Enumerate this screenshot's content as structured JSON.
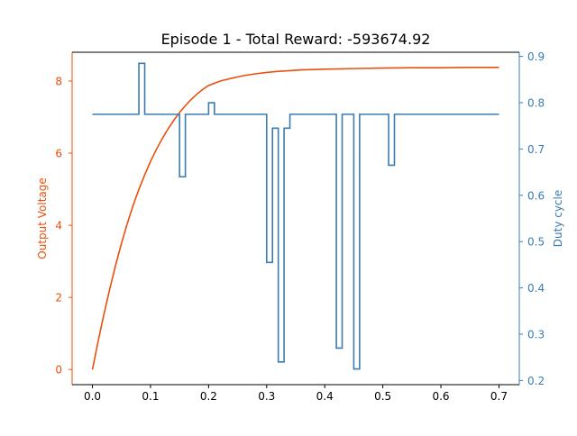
{
  "chart_data": {
    "type": "line",
    "title": "Episode 1 - Total Reward: -593674.92",
    "xlabel": "",
    "xlim": [
      -0.035,
      0.735
    ],
    "x_ticks": [
      "0.0",
      "0.1",
      "0.2",
      "0.3",
      "0.4",
      "0.5",
      "0.6",
      "0.7"
    ],
    "x_tick_values": [
      0.0,
      0.1,
      0.2,
      0.3,
      0.4,
      0.5,
      0.6,
      0.7
    ],
    "grid": false,
    "legend": "none",
    "left_axis": {
      "label": "Output Voltage",
      "color": "#e8500f",
      "ylim": [
        -0.42,
        8.8
      ],
      "ticks": [
        "0",
        "2",
        "4",
        "6",
        "8"
      ],
      "tick_values": [
        0,
        2,
        4,
        6,
        8
      ]
    },
    "right_axis": {
      "label": "Duty cycle",
      "color": "#3b7bb0",
      "ylim": [
        0.191,
        0.909
      ],
      "ticks": [
        "0.2",
        "0.3",
        "0.4",
        "0.5",
        "0.6",
        "0.7",
        "0.8",
        "0.9"
      ],
      "tick_values": [
        0.2,
        0.3,
        0.4,
        0.5,
        0.6,
        0.7,
        0.8,
        0.9
      ]
    },
    "series": [
      {
        "axis": "left",
        "color": "#e8500f",
        "x": [
          0.0,
          0.01,
          0.02,
          0.03,
          0.04,
          0.05,
          0.06,
          0.07,
          0.08,
          0.09,
          0.1,
          0.11,
          0.12,
          0.13,
          0.14,
          0.15,
          0.16,
          0.17,
          0.18,
          0.19,
          0.2,
          0.22,
          0.24,
          0.26,
          0.28,
          0.3,
          0.32,
          0.34,
          0.36,
          0.38,
          0.4,
          0.43,
          0.46,
          0.5,
          0.55,
          0.6,
          0.65,
          0.7
        ],
        "values": [
          0.0,
          0.8,
          1.55,
          2.25,
          2.9,
          3.5,
          4.05,
          4.55,
          5.0,
          5.4,
          5.77,
          6.1,
          6.4,
          6.67,
          6.91,
          7.13,
          7.32,
          7.49,
          7.64,
          7.77,
          7.88,
          8.0,
          8.08,
          8.15,
          8.2,
          8.24,
          8.27,
          8.29,
          8.31,
          8.32,
          8.33,
          8.34,
          8.35,
          8.36,
          8.37,
          8.37,
          8.38,
          8.38
        ]
      },
      {
        "axis": "right",
        "step": true,
        "color": "#3b7bb0",
        "x": [
          0.0,
          0.08,
          0.09,
          0.15,
          0.16,
          0.2,
          0.21,
          0.3,
          0.31,
          0.32,
          0.33,
          0.34,
          0.42,
          0.43,
          0.45,
          0.46,
          0.51,
          0.52,
          0.7
        ],
        "values": [
          0.775,
          0.885,
          0.775,
          0.64,
          0.775,
          0.8,
          0.775,
          0.455,
          0.745,
          0.24,
          0.745,
          0.775,
          0.27,
          0.775,
          0.225,
          0.775,
          0.665,
          0.775,
          0.775
        ]
      }
    ]
  }
}
